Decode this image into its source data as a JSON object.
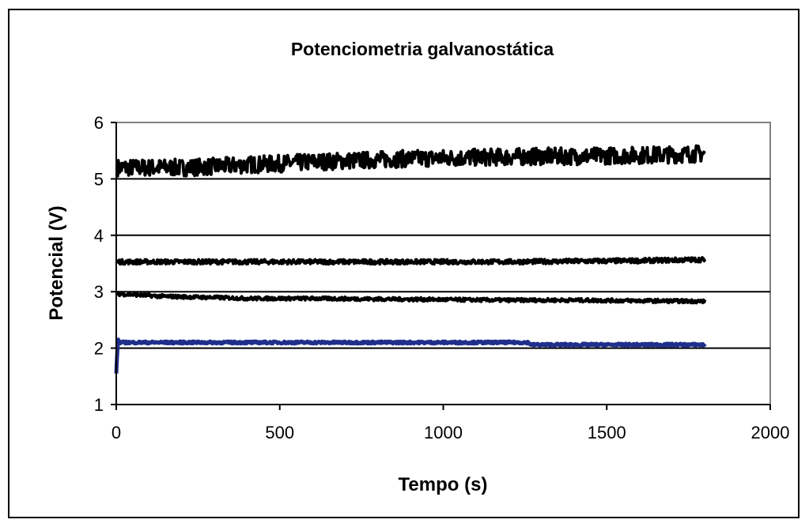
{
  "chart_data": {
    "type": "line",
    "title": "Potenciometria galvanostática",
    "xlabel": "Tempo (s)",
    "ylabel": "Potencial (V)",
    "xlim": [
      0,
      2000
    ],
    "ylim": [
      1,
      6
    ],
    "xticks": [
      0,
      500,
      1000,
      1500,
      2000
    ],
    "yticks": [
      1,
      2,
      3,
      4,
      5,
      6
    ],
    "grid": "horizontal",
    "legend": "none",
    "series": [
      {
        "color": "#000000",
        "noise": 0.15,
        "x": [
          0,
          100,
          200,
          300,
          400,
          500,
          600,
          700,
          800,
          900,
          1000,
          1100,
          1200,
          1300,
          1400,
          1500,
          1600,
          1700,
          1800
        ],
        "y": [
          5.2,
          5.2,
          5.2,
          5.22,
          5.25,
          5.27,
          5.3,
          5.32,
          5.34,
          5.36,
          5.37,
          5.38,
          5.39,
          5.4,
          5.4,
          5.41,
          5.42,
          5.43,
          5.45
        ]
      },
      {
        "color": "#000000",
        "noise": 0.04,
        "x": [
          0,
          200,
          400,
          600,
          800,
          1000,
          1200,
          1400,
          1600,
          1800
        ],
        "y": [
          3.53,
          3.53,
          3.53,
          3.53,
          3.53,
          3.53,
          3.53,
          3.54,
          3.55,
          3.57
        ]
      },
      {
        "color": "#000000",
        "noise": 0.03,
        "x": [
          0,
          50,
          130,
          200,
          350,
          400,
          600,
          800,
          1000,
          1200,
          1400,
          1600,
          1800
        ],
        "y": [
          2.96,
          2.95,
          2.92,
          2.91,
          2.89,
          2.88,
          2.88,
          2.87,
          2.86,
          2.85,
          2.85,
          2.84,
          2.83
        ]
      },
      {
        "color": "#1f2f8c",
        "noise": 0.02,
        "x": [
          0,
          5,
          10,
          1260,
          1270,
          1800
        ],
        "y": [
          1.55,
          2.15,
          2.1,
          2.1,
          2.06,
          2.06
        ]
      }
    ]
  }
}
